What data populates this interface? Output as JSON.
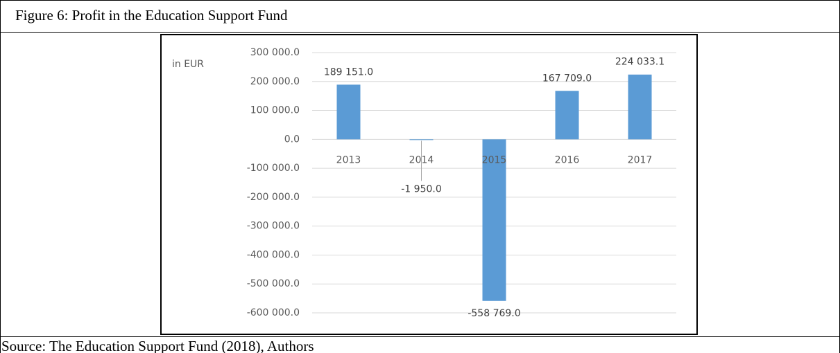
{
  "chart_data": {
    "type": "bar",
    "title": "Figure 6: Profit in the Education Support Fund",
    "source": "Source: The Education Support Fund (2018), Authors",
    "y_label": "in EUR",
    "categories": [
      "2013",
      "2014",
      "2015",
      "2016",
      "2017"
    ],
    "values": [
      189151,
      -1950,
      -558769,
      167709,
      224033.1
    ],
    "value_labels": [
      "189 151.0",
      "-1 950.0",
      "-558 769.0",
      "167 709.0",
      "224 033.1"
    ],
    "color": "#5b9bd5",
    "ylim": [
      -600000,
      300000
    ],
    "yticks": [
      {
        "value": -600000,
        "label": "-600 000.0"
      },
      {
        "value": -500000,
        "label": "-500 000.0"
      },
      {
        "value": -400000,
        "label": "-400 000.0"
      },
      {
        "value": -300000,
        "label": "-300 000.0"
      },
      {
        "value": -200000,
        "label": "-200 000.0"
      },
      {
        "value": -100000,
        "label": "-100 000.0"
      },
      {
        "value": 0,
        "label": "0.0"
      },
      {
        "value": 100000,
        "label": "100 000.0"
      },
      {
        "value": 200000,
        "label": "200 000.0"
      },
      {
        "value": 300000,
        "label": "300 000.0"
      }
    ],
    "grid": true
  }
}
